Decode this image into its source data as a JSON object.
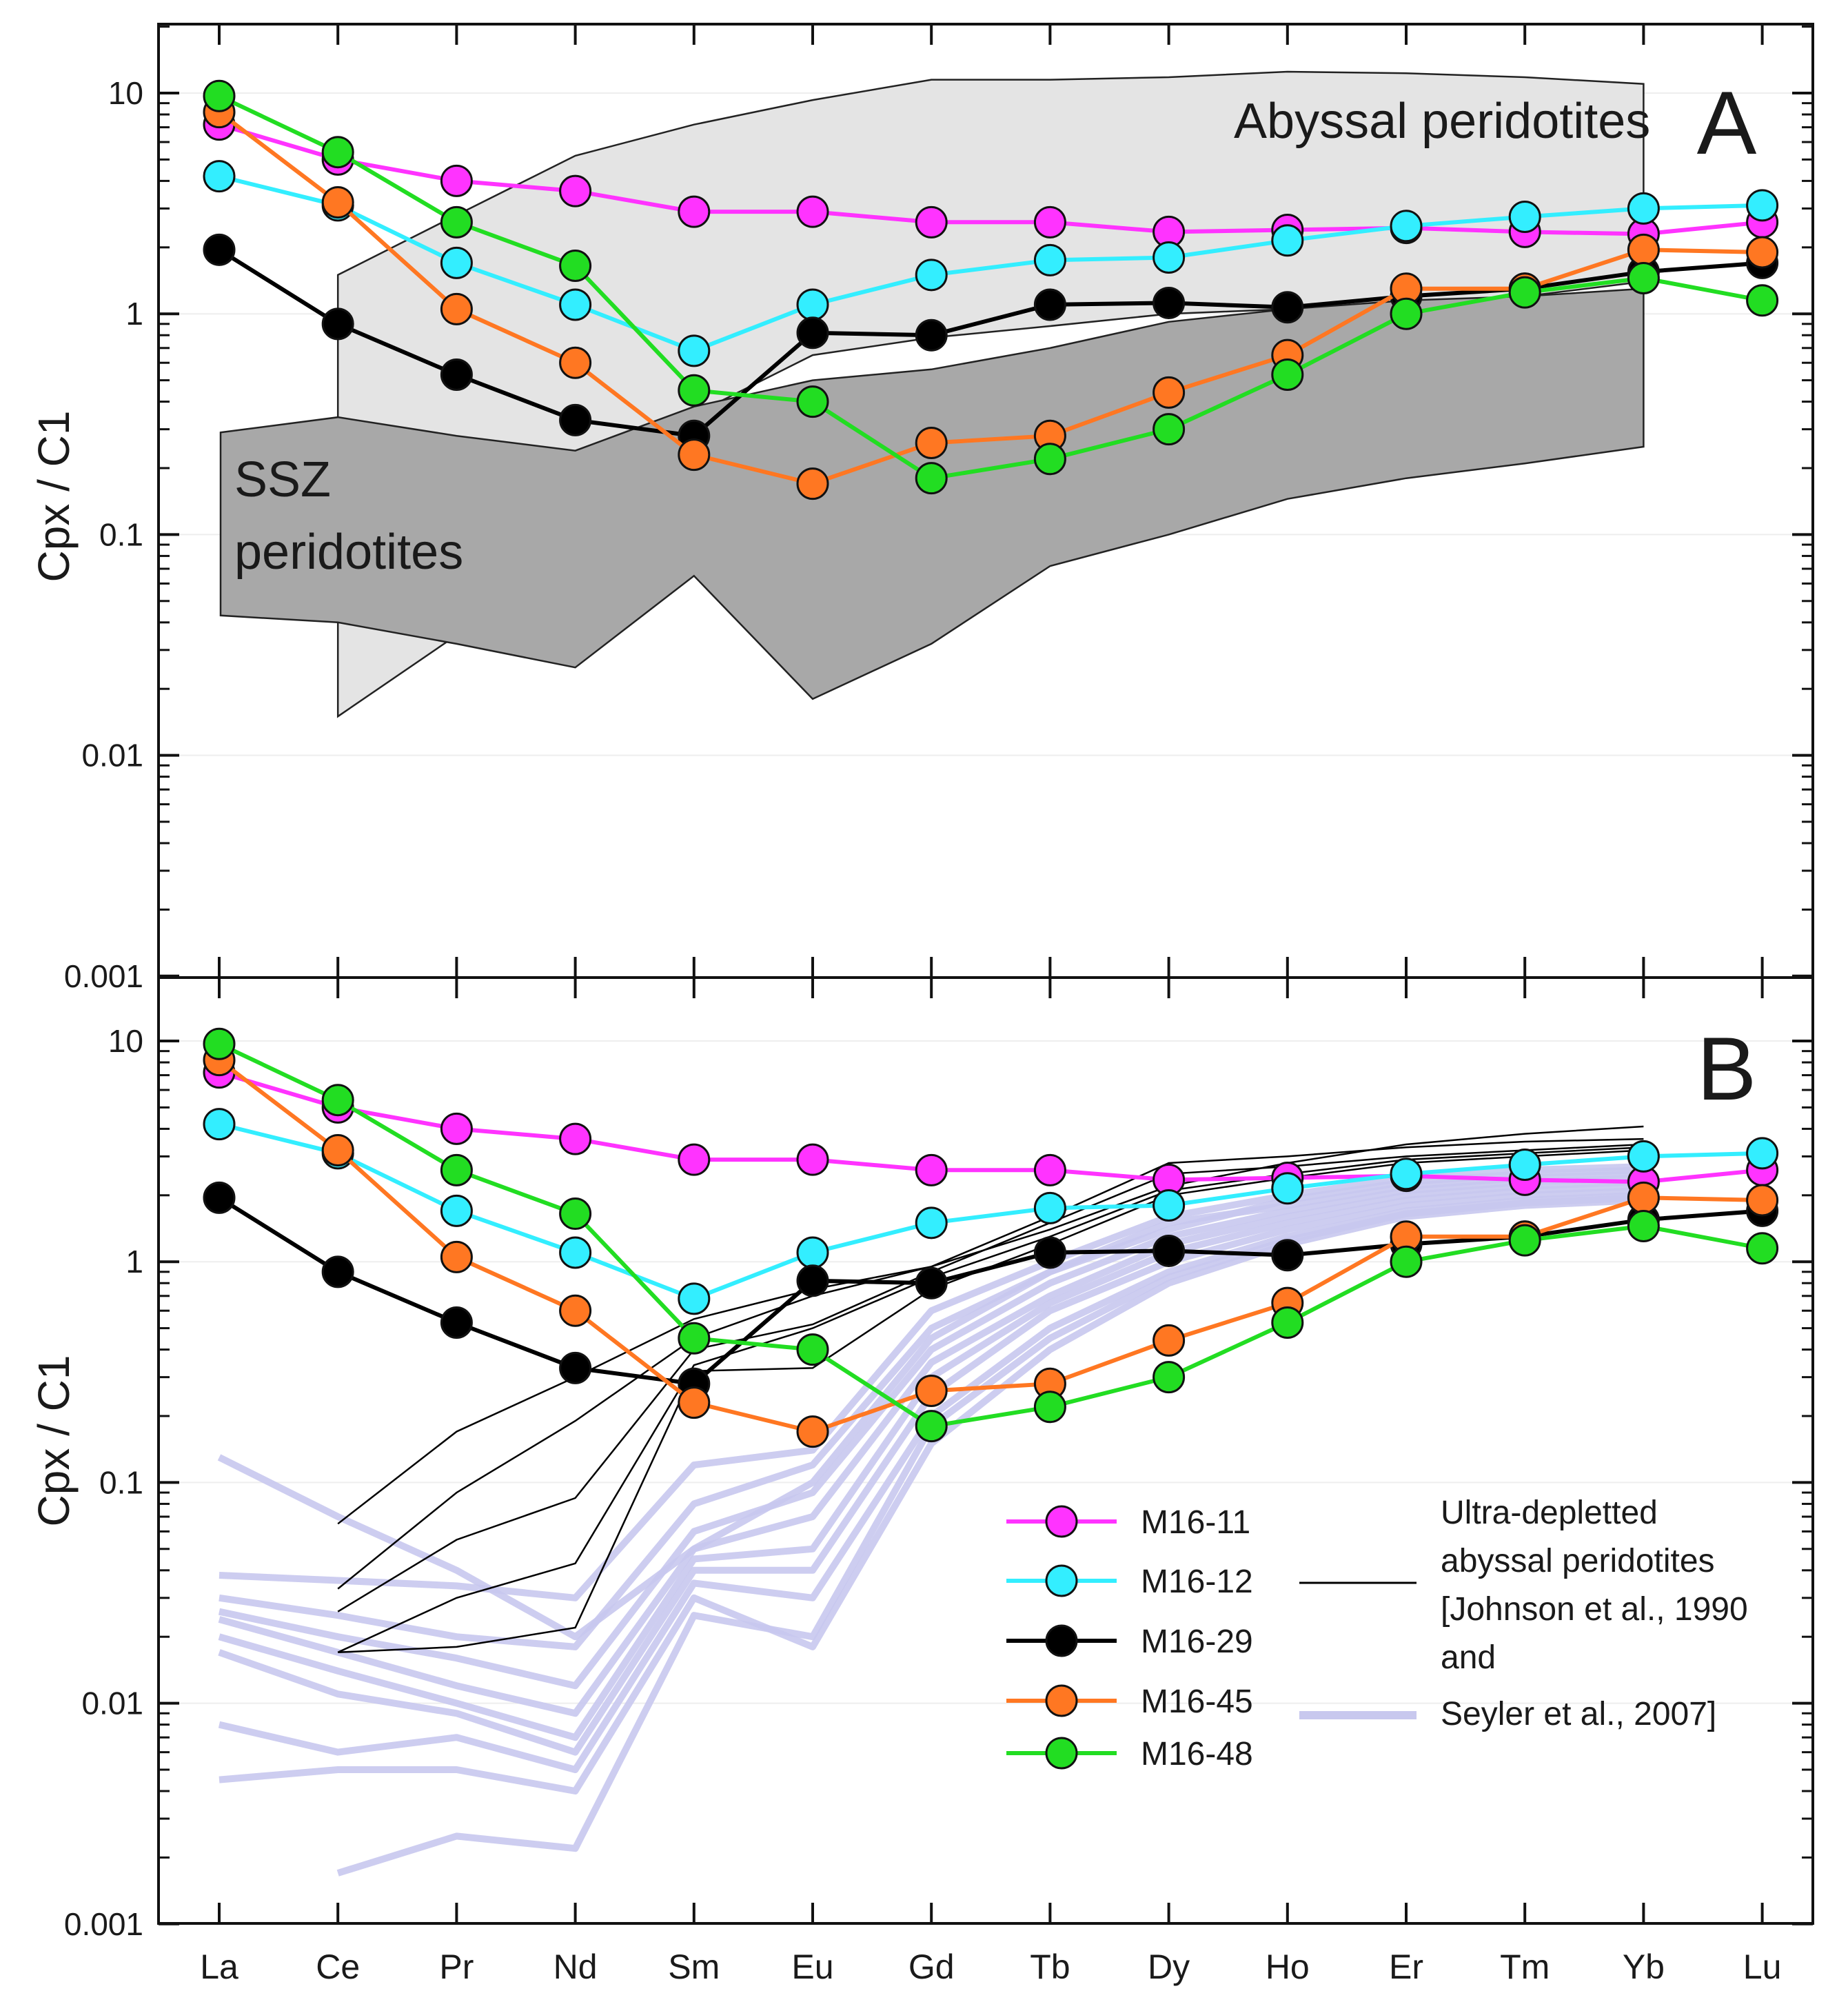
{
  "chart_data": [
    {
      "panel": "A",
      "type": "line",
      "scale": "log",
      "ylabel": "Cpx / C1",
      "ylim": [
        0.001,
        20
      ],
      "yticks": [
        "0.001",
        "0.01",
        "0.1",
        "1",
        "10"
      ],
      "categories": [
        "La",
        "Ce",
        "Pr",
        "Nd",
        "Sm",
        "Eu",
        "Gd",
        "Tb",
        "Dy",
        "Ho",
        "Er",
        "Tm",
        "Yb",
        "Lu"
      ],
      "fields": [
        {
          "name": "Abyssal peridotites",
          "color": "#e4e4e4",
          "upper": [
            null,
            1.5,
            2.8,
            5.2,
            7.2,
            9.3,
            11.5,
            11.5,
            11.8,
            12.5,
            12.3,
            11.8,
            11.0,
            null
          ],
          "lower": [
            null,
            0.015,
            0.035,
            0.11,
            0.35,
            0.65,
            0.78,
            0.88,
            1.0,
            1.05,
            1.1,
            1.2,
            1.4,
            null
          ]
        },
        {
          "name": "SSZ peridotites",
          "color": "#a8a8a8",
          "upper": [
            0.29,
            0.34,
            0.28,
            0.24,
            0.38,
            0.5,
            0.56,
            0.7,
            0.92,
            1.05,
            1.15,
            1.2,
            1.3,
            null
          ],
          "lower": [
            0.043,
            0.04,
            0.032,
            0.025,
            0.065,
            0.018,
            0.032,
            0.072,
            0.1,
            0.145,
            0.18,
            0.21,
            0.25,
            null
          ]
        }
      ],
      "series": [
        {
          "name": "M16-11",
          "color": "#ff33ff",
          "values": [
            7.2,
            5.0,
            4.0,
            3.6,
            2.9,
            2.9,
            2.6,
            2.6,
            2.35,
            2.4,
            2.45,
            2.35,
            2.3,
            2.6
          ]
        },
        {
          "name": "M16-12",
          "color": "#33eeff",
          "values": [
            4.2,
            3.1,
            1.7,
            1.1,
            0.68,
            1.1,
            1.5,
            1.75,
            1.8,
            2.15,
            2.5,
            2.75,
            3.0,
            3.1
          ]
        },
        {
          "name": "M16-29",
          "color": "#000000",
          "values": [
            1.95,
            0.9,
            0.53,
            0.33,
            0.28,
            0.82,
            0.8,
            1.1,
            1.12,
            1.07,
            1.2,
            1.3,
            1.55,
            1.7
          ]
        },
        {
          "name": "M16-45",
          "color": "#ff7722",
          "values": [
            8.2,
            3.2,
            1.05,
            0.6,
            0.23,
            0.17,
            0.26,
            0.28,
            0.44,
            0.65,
            1.3,
            1.3,
            1.95,
            1.9
          ]
        },
        {
          "name": "M16-48",
          "color": "#22dd22",
          "values": [
            9.7,
            5.4,
            2.6,
            1.65,
            0.45,
            0.4,
            0.18,
            0.22,
            0.3,
            0.53,
            1.0,
            1.25,
            1.45,
            1.15
          ]
        }
      ]
    },
    {
      "panel": "B",
      "type": "line",
      "scale": "log",
      "ylabel": "Cpx / C1",
      "ylim": [
        0.001,
        20
      ],
      "yticks": [
        "0.001",
        "0.01",
        "0.1",
        "1",
        "10"
      ],
      "categories": [
        "La",
        "Ce",
        "Pr",
        "Nd",
        "Sm",
        "Eu",
        "Gd",
        "Tb",
        "Dy",
        "Ho",
        "Er",
        "Tm",
        "Yb",
        "Lu"
      ],
      "series": [
        {
          "name": "M16-11",
          "color": "#ff33ff",
          "values": [
            7.2,
            5.0,
            4.0,
            3.6,
            2.9,
            2.9,
            2.6,
            2.6,
            2.35,
            2.4,
            2.45,
            2.35,
            2.3,
            2.6
          ]
        },
        {
          "name": "M16-12",
          "color": "#33eeff",
          "values": [
            4.2,
            3.1,
            1.7,
            1.1,
            0.68,
            1.1,
            1.5,
            1.75,
            1.8,
            2.15,
            2.5,
            2.75,
            3.0,
            3.1
          ]
        },
        {
          "name": "M16-29",
          "color": "#000000",
          "values": [
            1.95,
            0.9,
            0.53,
            0.33,
            0.28,
            0.82,
            0.8,
            1.1,
            1.12,
            1.07,
            1.2,
            1.3,
            1.55,
            1.7
          ]
        },
        {
          "name": "M16-45",
          "color": "#ff7722",
          "values": [
            8.2,
            3.2,
            1.05,
            0.6,
            0.23,
            0.17,
            0.26,
            0.28,
            0.44,
            0.65,
            1.3,
            1.3,
            1.95,
            1.9
          ]
        },
        {
          "name": "M16-48",
          "color": "#22dd22",
          "values": [
            9.7,
            5.4,
            2.6,
            1.65,
            0.45,
            0.4,
            0.18,
            0.22,
            0.3,
            0.53,
            1.0,
            1.25,
            1.45,
            1.15
          ]
        }
      ],
      "reference_black": {
        "color": "#000000",
        "lines": [
          [
            null,
            0.065,
            0.17,
            0.3,
            0.55,
            0.75,
            0.95,
            1.4,
            2.2,
            2.8,
            3.4,
            3.8,
            4.1,
            null
          ],
          [
            null,
            0.033,
            0.09,
            0.19,
            0.45,
            0.7,
            0.95,
            1.6,
            2.8,
            3.0,
            3.3,
            3.5,
            3.6,
            null
          ],
          [
            null,
            0.026,
            0.055,
            0.085,
            0.4,
            0.52,
            0.9,
            1.5,
            2.5,
            2.7,
            3.0,
            3.2,
            3.4,
            null
          ],
          [
            null,
            0.017,
            0.03,
            0.043,
            0.34,
            0.5,
            0.85,
            1.3,
            2.1,
            2.5,
            2.9,
            3.1,
            3.3,
            null
          ],
          [
            null,
            0.017,
            0.018,
            0.022,
            0.32,
            0.33,
            0.75,
            1.2,
            2.0,
            2.4,
            2.8,
            3.0,
            3.2,
            null
          ]
        ]
      },
      "reference_blue": {
        "color": "#c8c8ee",
        "lines": [
          [
            0.13,
            0.07,
            0.04,
            0.02,
            0.05,
            0.1,
            0.45,
            0.9,
            1.4,
            1.9,
            2.3,
            2.5,
            2.6,
            null
          ],
          [
            0.038,
            0.036,
            0.034,
            0.03,
            0.12,
            0.14,
            0.6,
            1.0,
            1.6,
            2.0,
            2.4,
            2.6,
            2.7,
            null
          ],
          [
            0.03,
            0.025,
            0.02,
            0.018,
            0.08,
            0.12,
            0.5,
            0.9,
            1.5,
            1.8,
            2.2,
            2.4,
            2.5,
            null
          ],
          [
            0.026,
            0.02,
            0.016,
            0.012,
            0.06,
            0.09,
            0.4,
            0.8,
            1.3,
            1.7,
            2.1,
            2.3,
            2.4,
            null
          ],
          [
            0.024,
            0.017,
            0.012,
            0.009,
            0.05,
            0.07,
            0.35,
            0.7,
            1.2,
            1.6,
            2.0,
            2.2,
            2.3,
            null
          ],
          [
            0.02,
            0.014,
            0.01,
            0.007,
            0.045,
            0.05,
            0.3,
            0.65,
            1.1,
            1.5,
            1.9,
            2.1,
            2.2,
            null
          ],
          [
            0.017,
            0.011,
            0.009,
            0.006,
            0.04,
            0.04,
            0.25,
            0.6,
            1.0,
            1.4,
            1.8,
            2.0,
            2.1,
            null
          ],
          [
            0.008,
            0.006,
            0.007,
            0.005,
            0.035,
            0.03,
            0.2,
            0.5,
            0.9,
            1.3,
            1.7,
            1.9,
            2.0,
            null
          ],
          [
            0.0045,
            0.005,
            0.005,
            0.004,
            0.03,
            0.018,
            0.15,
            0.4,
            0.8,
            1.2,
            1.6,
            1.8,
            1.9,
            null
          ],
          [
            null,
            0.0017,
            0.0025,
            0.0022,
            0.025,
            0.02,
            0.18,
            0.45,
            0.85,
            1.25,
            1.65,
            1.85,
            1.95,
            null
          ]
        ]
      }
    }
  ],
  "panel_labels": {
    "a": "A",
    "b": "B"
  },
  "field_labels": {
    "abyssal": "Abyssal peridotites",
    "ssz_line1": "SSZ",
    "ssz_line2": "peridotites"
  },
  "legend": {
    "samples": [
      "M16-11",
      "M16-12",
      "M16-29",
      "M16-45",
      "M16-48"
    ],
    "reference_text": [
      "Ultra-depletted",
      "abyssal peridotites",
      "[Johnson et al., 1990",
      "and",
      "Seyler et al., 2007]"
    ]
  }
}
